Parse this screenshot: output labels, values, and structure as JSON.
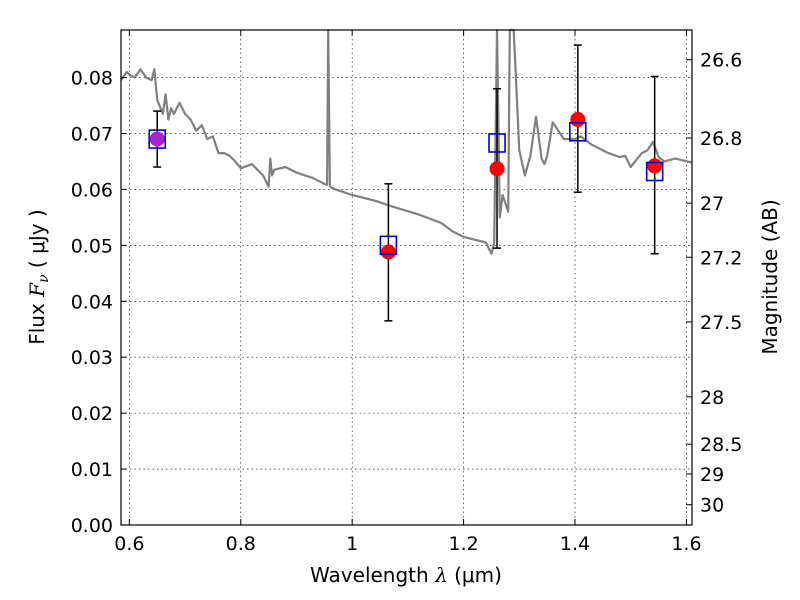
{
  "chart_data": {
    "type": "scatter",
    "title": "",
    "xlabel": "Wavelength",
    "xlabel_symbol": "λ",
    "xlabel_unit_open": "(",
    "xlabel_unit": "μm",
    "xlabel_unit_close": ")",
    "ylabel": "Flux",
    "ylabel_symbol": "F",
    "ylabel_sub": "ν",
    "ylabel_unit_open": "(",
    "ylabel_unit": "μJy",
    "ylabel_unit_close": ")",
    "y2label": "Magnitude (AB)",
    "xlim": [
      0.585,
      1.61
    ],
    "ylim": [
      0.0,
      0.0885
    ],
    "grid": true,
    "x_ticks": [
      {
        "value": 0.6,
        "label": "0.6"
      },
      {
        "value": 0.8,
        "label": "0.8"
      },
      {
        "value": 1.0,
        "label": "1"
      },
      {
        "value": 1.2,
        "label": "1.2"
      },
      {
        "value": 1.4,
        "label": "1.4"
      },
      {
        "value": 1.6,
        "label": "1.6"
      }
    ],
    "y_ticks": [
      {
        "value": 0.0,
        "label": "0.00"
      },
      {
        "value": 0.01,
        "label": "0.01"
      },
      {
        "value": 0.02,
        "label": "0.02"
      },
      {
        "value": 0.03,
        "label": "0.03"
      },
      {
        "value": 0.04,
        "label": "0.04"
      },
      {
        "value": 0.05,
        "label": "0.05"
      },
      {
        "value": 0.06,
        "label": "0.06"
      },
      {
        "value": 0.07,
        "label": "0.07"
      },
      {
        "value": 0.08,
        "label": "0.08"
      }
    ],
    "y2_ticks": [
      {
        "mag": 26.6,
        "label": "26.6"
      },
      {
        "mag": 26.8,
        "label": "26.8"
      },
      {
        "mag": 27.0,
        "label": "27"
      },
      {
        "mag": 27.2,
        "label": "27.2"
      },
      {
        "mag": 27.5,
        "label": "27.5"
      },
      {
        "mag": 28.0,
        "label": "28"
      },
      {
        "mag": 28.5,
        "label": "28.5"
      },
      {
        "mag": 29.0,
        "label": "29"
      },
      {
        "mag": 30.0,
        "label": "30"
      }
    ],
    "colors": {
      "observed": "#ff0000",
      "model": "#0000cc",
      "spectrum": "#808080",
      "errorbar": "#000000",
      "overlap": "#aa22cc"
    },
    "series": [
      {
        "type": "errorbar",
        "points": [
          {
            "x": 0.65,
            "y": 0.069,
            "lo": 0.064,
            "hi": 0.074
          },
          {
            "x": 1.065,
            "y": 0.0488,
            "lo": 0.0365,
            "hi": 0.061
          },
          {
            "x": 1.26,
            "y": 0.0637,
            "lo": 0.0495,
            "hi": 0.078
          },
          {
            "x": 1.405,
            "y": 0.0725,
            "lo": 0.0595,
            "hi": 0.0858
          },
          {
            "x": 1.543,
            "y": 0.0642,
            "lo": 0.0485,
            "hi": 0.0802
          }
        ]
      },
      {
        "type": "model",
        "points": [
          {
            "x": 0.65,
            "y": 0.069
          },
          {
            "x": 1.065,
            "y": 0.05
          },
          {
            "x": 1.26,
            "y": 0.0683
          },
          {
            "x": 1.405,
            "y": 0.0703
          },
          {
            "x": 1.543,
            "y": 0.0632
          }
        ]
      },
      {
        "type": "spectrum",
        "x": [
          0.585,
          0.595,
          0.6,
          0.61,
          0.62,
          0.63,
          0.64,
          0.645,
          0.65,
          0.66,
          0.665,
          0.67,
          0.675,
          0.68,
          0.69,
          0.7,
          0.71,
          0.72,
          0.73,
          0.74,
          0.75,
          0.76,
          0.77,
          0.78,
          0.79,
          0.8,
          0.82,
          0.84,
          0.85,
          0.853,
          0.856,
          0.86,
          0.88,
          0.9,
          0.93,
          0.95,
          0.955,
          0.957,
          0.96,
          0.963,
          0.97,
          1.0,
          1.04,
          1.08,
          1.12,
          1.16,
          1.18,
          1.2,
          1.22,
          1.24,
          1.25,
          1.255,
          1.26,
          1.265,
          1.27,
          1.28,
          1.283,
          1.29,
          1.3,
          1.31,
          1.32,
          1.33,
          1.34,
          1.345,
          1.35,
          1.36,
          1.38,
          1.4,
          1.41,
          1.43,
          1.46,
          1.48,
          1.49,
          1.5,
          1.52,
          1.53,
          1.54,
          1.55,
          1.56,
          1.58,
          1.61
        ],
        "y": [
          0.0795,
          0.081,
          0.0805,
          0.08,
          0.0815,
          0.08,
          0.0795,
          0.0815,
          0.076,
          0.0735,
          0.077,
          0.0725,
          0.0745,
          0.0735,
          0.0755,
          0.0735,
          0.0725,
          0.0705,
          0.0715,
          0.069,
          0.0695,
          0.0665,
          0.0665,
          0.066,
          0.065,
          0.0638,
          0.0645,
          0.0625,
          0.0605,
          0.0655,
          0.0625,
          0.0635,
          0.064,
          0.063,
          0.062,
          0.061,
          0.0608,
          0.0885,
          0.0606,
          0.0603,
          0.06,
          0.059,
          0.058,
          0.0567,
          0.0555,
          0.054,
          0.0525,
          0.0515,
          0.051,
          0.0505,
          0.0485,
          0.0505,
          0.0885,
          0.055,
          0.059,
          0.056,
          0.0885,
          0.0885,
          0.067,
          0.0625,
          0.066,
          0.073,
          0.0655,
          0.0645,
          0.066,
          0.072,
          0.069,
          0.069,
          0.0695,
          0.068,
          0.0665,
          0.0658,
          0.066,
          0.064,
          0.0665,
          0.067,
          0.0685,
          0.0658,
          0.065,
          0.0655,
          0.0648
        ]
      }
    ]
  }
}
